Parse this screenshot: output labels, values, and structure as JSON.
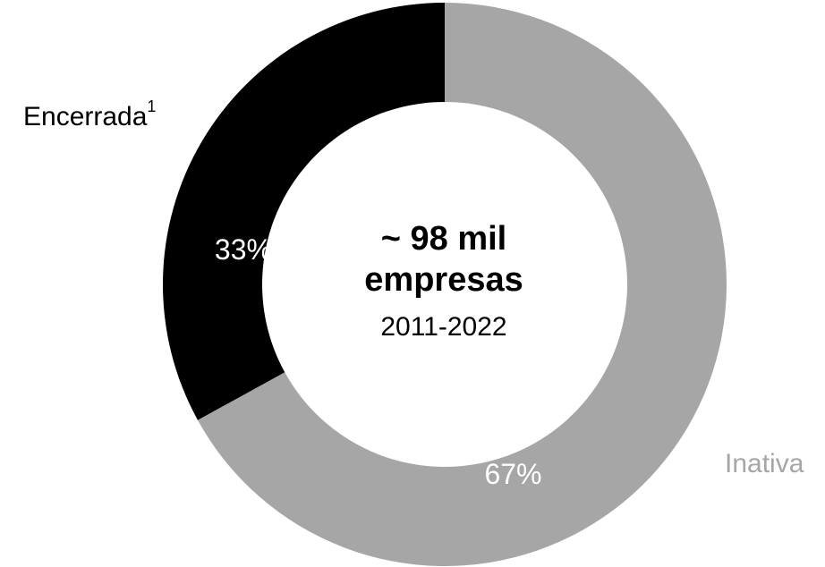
{
  "chart_data": {
    "type": "pie",
    "variant": "donut",
    "categories": [
      "Inativa",
      "Encerrada"
    ],
    "label_suffix": [
      "",
      "1"
    ],
    "values": [
      67,
      33
    ],
    "value_labels": [
      "67%",
      "33%"
    ],
    "colors": [
      "#a6a6a6",
      "#000000"
    ],
    "label_colors": [
      "#a6a6a6",
      "#000000"
    ],
    "center_title_line1": "~ 98 mil",
    "center_title_line2": "empresas",
    "center_subtitle": "2011-2022"
  }
}
